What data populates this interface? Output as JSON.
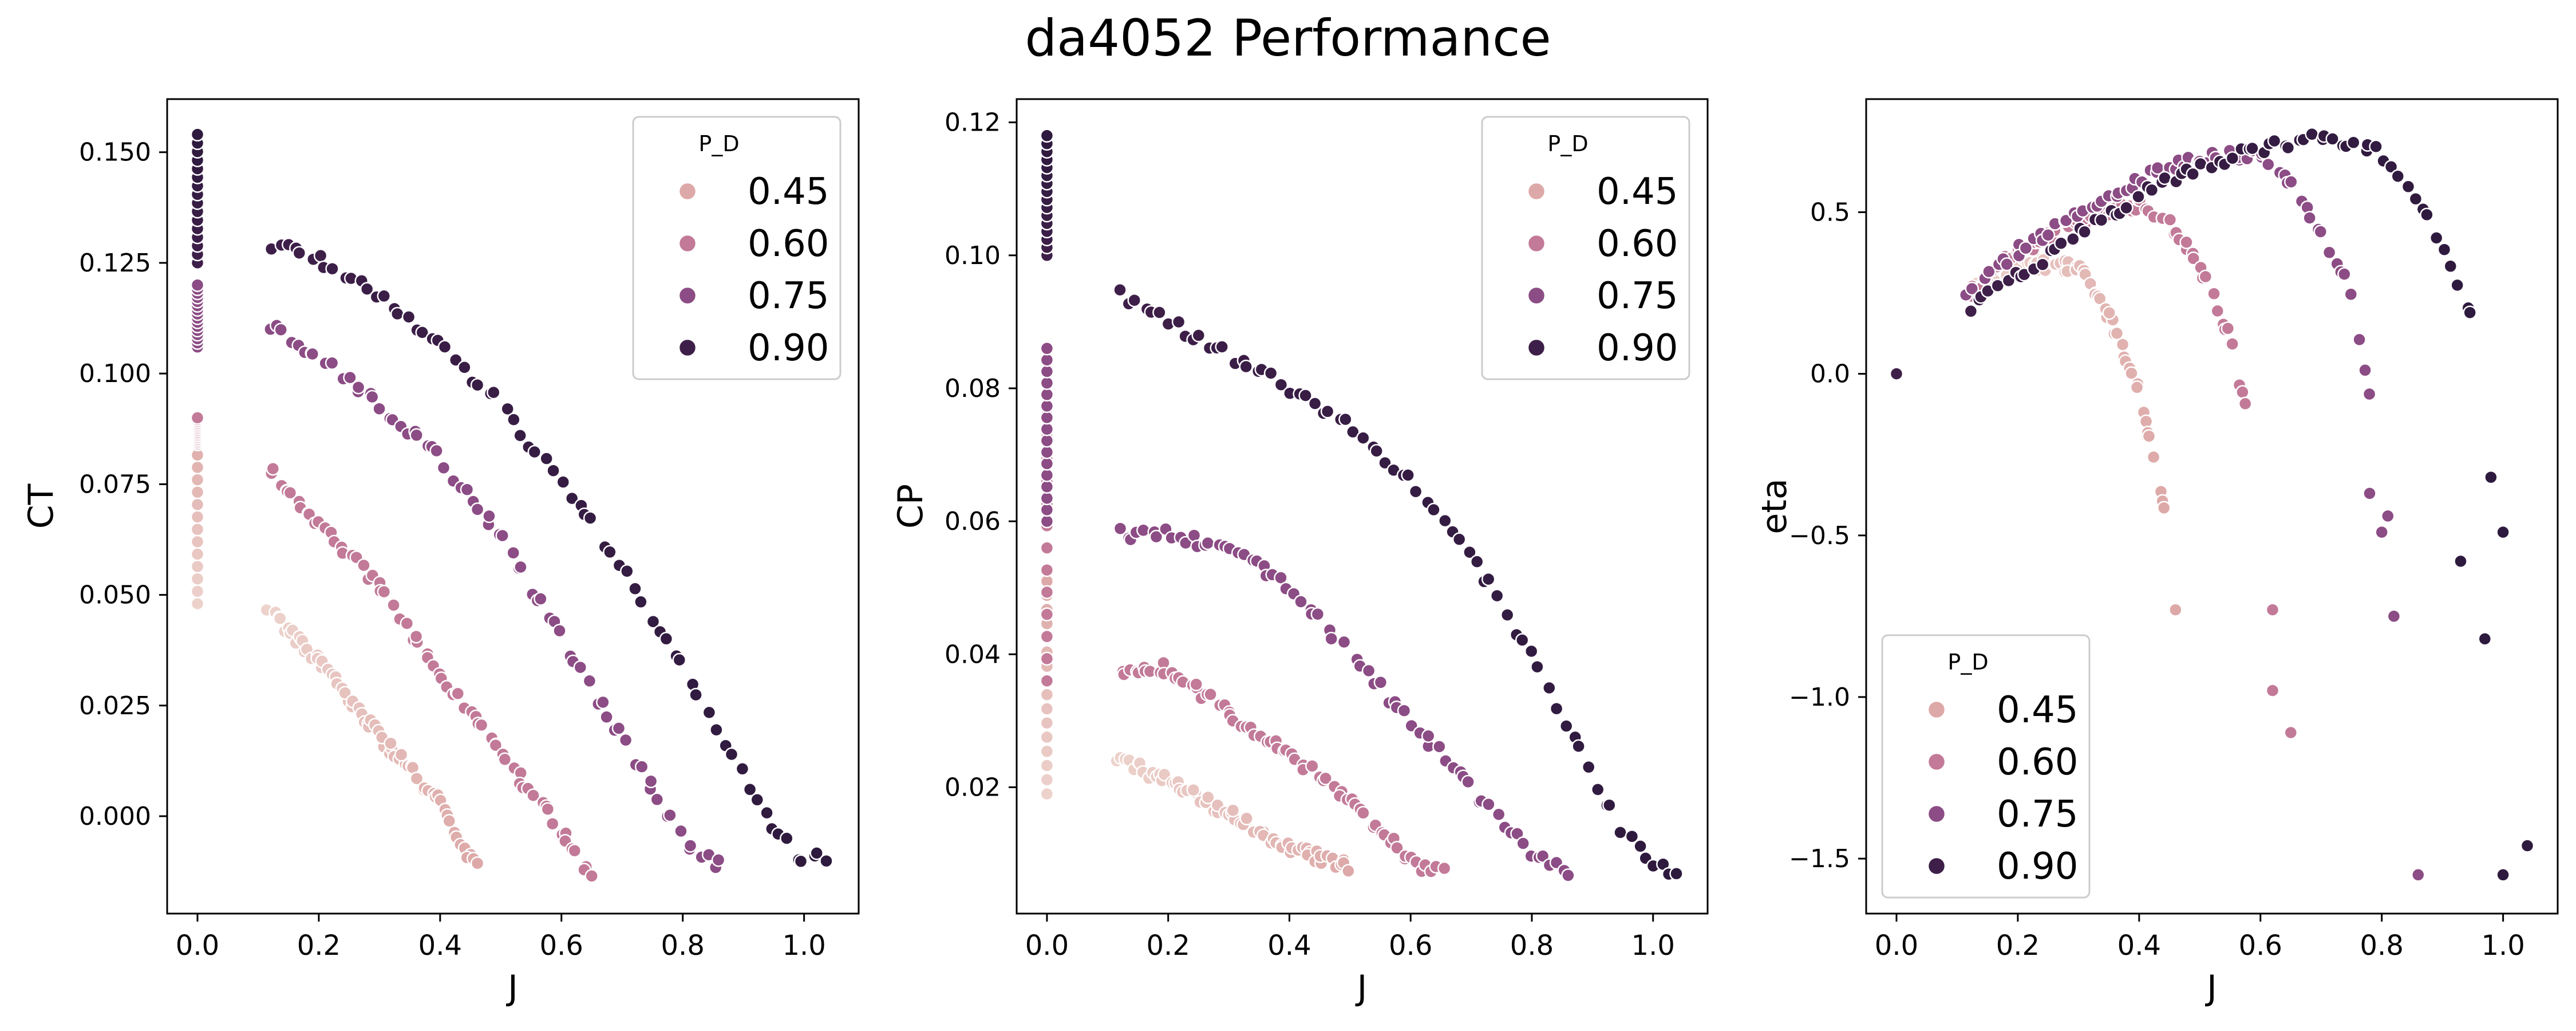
{
  "figure_title": "da4052 Performance",
  "legend_title": "P_D",
  "hue_levels": [
    "0.45",
    "0.60",
    "0.75",
    "0.90"
  ],
  "colors": {
    "c045_light": "#edd2cc",
    "c045": "#dda9a8",
    "c060": "#c27a98",
    "c075": "#8c4c85",
    "c090": "#3e1f49",
    "c090_dark": "#2e1a3e",
    "marker_edge": "#ffffff",
    "axes": "#000000"
  },
  "chart_data": [
    {
      "type": "scatter",
      "xlabel": "J",
      "ylabel": "CT",
      "xlim": [
        -0.05,
        1.09
      ],
      "ylim": [
        -0.022,
        0.162
      ],
      "xticks": [
        "0.0",
        "0.2",
        "0.4",
        "0.6",
        "0.8",
        "1.0"
      ],
      "yticks": [
        "0.000",
        "0.025",
        "0.050",
        "0.075",
        "0.100",
        "0.125",
        "0.150"
      ],
      "legend_position": "upper right",
      "series": [
        {
          "name": "0.45",
          "J0_min": 0.048,
          "J0_max": 0.09,
          "curve": [
            [
              0.12,
              0.046
            ],
            [
              0.2,
              0.035
            ],
            [
              0.3,
              0.018
            ],
            [
              0.4,
              0.003
            ],
            [
              0.46,
              -0.012
            ]
          ]
        },
        {
          "name": "0.60",
          "J0_min": 0.084,
          "J0_max": 0.09,
          "curve": [
            [
              0.12,
              0.078
            ],
            [
              0.2,
              0.066
            ],
            [
              0.3,
              0.052
            ],
            [
              0.4,
              0.032
            ],
            [
              0.5,
              0.014
            ],
            [
              0.6,
              -0.003
            ],
            [
              0.65,
              -0.014
            ]
          ]
        },
        {
          "name": "0.75",
          "J0_min": 0.106,
          "J0_max": 0.12,
          "curve": [
            [
              0.12,
              0.111
            ],
            [
              0.2,
              0.104
            ],
            [
              0.3,
              0.093
            ],
            [
              0.4,
              0.081
            ],
            [
              0.5,
              0.063
            ],
            [
              0.6,
              0.04
            ],
            [
              0.7,
              0.018
            ],
            [
              0.8,
              -0.005
            ],
            [
              0.86,
              -0.011
            ]
          ]
        },
        {
          "name": "0.90",
          "J0_min": 0.125,
          "J0_max": 0.154,
          "curve": [
            [
              0.12,
              0.129
            ],
            [
              0.2,
              0.126
            ],
            [
              0.3,
              0.117
            ],
            [
              0.4,
              0.106
            ],
            [
              0.5,
              0.093
            ],
            [
              0.6,
              0.075
            ],
            [
              0.7,
              0.057
            ],
            [
              0.8,
              0.033
            ],
            [
              0.9,
              0.01
            ],
            [
              0.95,
              -0.003
            ],
            [
              1.0,
              -0.01
            ],
            [
              1.04,
              -0.009
            ]
          ]
        }
      ]
    },
    {
      "type": "scatter",
      "xlabel": "J",
      "ylabel": "CP",
      "xlim": [
        -0.05,
        1.09
      ],
      "ylim": [
        0.001,
        0.1235
      ],
      "xticks": [
        "0.0",
        "0.2",
        "0.4",
        "0.6",
        "0.8",
        "1.0"
      ],
      "yticks": [
        "0.02",
        "0.04",
        "0.06",
        "0.08",
        "0.10",
        "0.12"
      ],
      "legend_position": "upper right",
      "series": [
        {
          "name": "0.45",
          "J0_min": 0.019,
          "J0_max": 0.051,
          "curve": [
            [
              0.12,
              0.024
            ],
            [
              0.2,
              0.021
            ],
            [
              0.3,
              0.016
            ],
            [
              0.4,
              0.011
            ],
            [
              0.5,
              0.008
            ]
          ]
        },
        {
          "name": "0.60",
          "J0_min": 0.036,
          "J0_max": 0.086,
          "curve": [
            [
              0.12,
              0.037
            ],
            [
              0.2,
              0.038
            ],
            [
              0.3,
              0.031
            ],
            [
              0.4,
              0.025
            ],
            [
              0.5,
              0.018
            ],
            [
              0.6,
              0.009
            ],
            [
              0.65,
              0.007
            ]
          ]
        },
        {
          "name": "0.75",
          "J0_min": 0.06,
          "J0_max": 0.086,
          "curve": [
            [
              0.12,
              0.058
            ],
            [
              0.2,
              0.058
            ],
            [
              0.3,
              0.056
            ],
            [
              0.4,
              0.05
            ],
            [
              0.5,
              0.04
            ],
            [
              0.6,
              0.03
            ],
            [
              0.7,
              0.02
            ],
            [
              0.8,
              0.01
            ],
            [
              0.86,
              0.007
            ]
          ]
        },
        {
          "name": "0.90",
          "J0_min": 0.1,
          "J0_max": 0.118,
          "curve": [
            [
              0.12,
              0.094
            ],
            [
              0.2,
              0.09
            ],
            [
              0.3,
              0.085
            ],
            [
              0.4,
              0.08
            ],
            [
              0.5,
              0.074
            ],
            [
              0.6,
              0.066
            ],
            [
              0.7,
              0.055
            ],
            [
              0.8,
              0.04
            ],
            [
              0.9,
              0.022
            ],
            [
              0.95,
              0.013
            ],
            [
              1.0,
              0.009
            ],
            [
              1.04,
              0.007
            ]
          ]
        }
      ]
    },
    {
      "type": "scatter",
      "xlabel": "J",
      "ylabel": "eta",
      "xlim": [
        -0.05,
        1.09
      ],
      "ylim": [
        -1.67,
        0.85
      ],
      "xticks": [
        "0.0",
        "0.2",
        "0.4",
        "0.6",
        "0.8",
        "1.0"
      ],
      "yticks": [
        "−1.5",
        "−1.0",
        "−0.5",
        "0.0",
        "0.5"
      ],
      "legend_position": "lower left",
      "origin_point": [
        0.0,
        0.0
      ],
      "series": [
        {
          "name": "0.45",
          "curve": [
            [
              0.12,
              0.25
            ],
            [
              0.2,
              0.34
            ],
            [
              0.3,
              0.33
            ],
            [
              0.35,
              0.18
            ],
            [
              0.4,
              -0.05
            ],
            [
              0.43,
              -0.33
            ],
            [
              0.44,
              -0.41
            ]
          ],
          "outliers": [
            [
              0.46,
              -0.73
            ]
          ]
        },
        {
          "name": "0.60",
          "curve": [
            [
              0.12,
              0.25
            ],
            [
              0.2,
              0.38
            ],
            [
              0.3,
              0.47
            ],
            [
              0.4,
              0.52
            ],
            [
              0.45,
              0.47
            ],
            [
              0.5,
              0.33
            ],
            [
              0.55,
              0.12
            ],
            [
              0.58,
              -0.15
            ]
          ],
          "outliers": [
            [
              0.62,
              -0.73
            ],
            [
              0.62,
              -0.98
            ],
            [
              0.65,
              -1.11
            ]
          ]
        },
        {
          "name": "0.75",
          "curve": [
            [
              0.12,
              0.25
            ],
            [
              0.2,
              0.38
            ],
            [
              0.3,
              0.5
            ],
            [
              0.4,
              0.6
            ],
            [
              0.5,
              0.67
            ],
            [
              0.6,
              0.68
            ],
            [
              0.65,
              0.6
            ],
            [
              0.7,
              0.44
            ],
            [
              0.75,
              0.25
            ],
            [
              0.78,
              -0.05
            ]
          ],
          "outliers": [
            [
              0.78,
              -0.37
            ],
            [
              0.8,
              -0.49
            ],
            [
              0.81,
              -0.44
            ],
            [
              0.82,
              -0.75
            ],
            [
              0.86,
              -1.55
            ]
          ]
        },
        {
          "name": "0.90",
          "curve": [
            [
              0.12,
              0.2
            ],
            [
              0.2,
              0.3
            ],
            [
              0.3,
              0.43
            ],
            [
              0.4,
              0.55
            ],
            [
              0.5,
              0.64
            ],
            [
              0.6,
              0.7
            ],
            [
              0.7,
              0.73
            ],
            [
              0.8,
              0.68
            ],
            [
              0.85,
              0.58
            ],
            [
              0.9,
              0.4
            ],
            [
              0.95,
              0.15
            ]
          ],
          "outliers": [
            [
              0.93,
              -0.58
            ],
            [
              0.97,
              -0.82
            ],
            [
              0.98,
              -0.32
            ],
            [
              1.0,
              -0.49
            ],
            [
              1.0,
              -1.55
            ],
            [
              1.04,
              -1.46
            ]
          ]
        }
      ]
    }
  ]
}
